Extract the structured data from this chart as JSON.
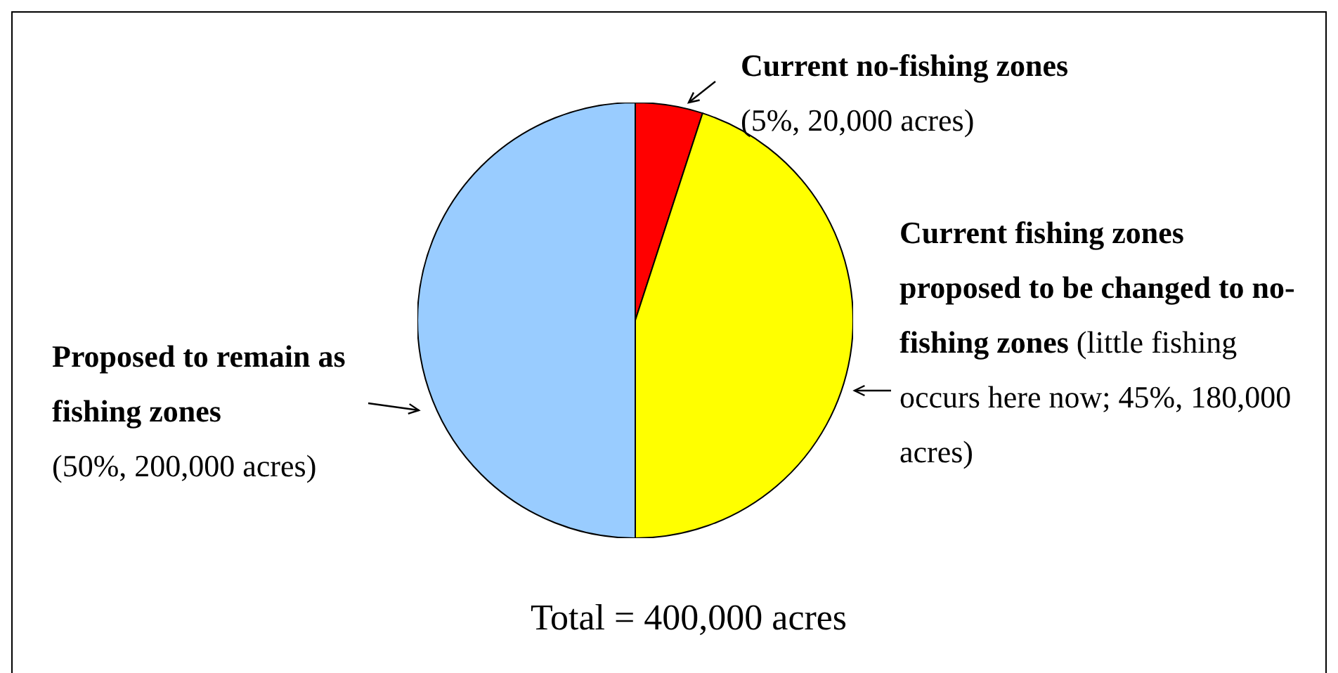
{
  "chart_data": {
    "type": "pie",
    "categories": [
      "Current no-fishing zones",
      "Current fishing zones proposed to be changed to no-fishing zones",
      "Proposed to remain as fishing zones"
    ],
    "values": [
      20000,
      180000,
      200000
    ],
    "value_labels": [
      "(5%, 20,000 acres)",
      "(little fishing occurs here now; 45%, 180,000 acres)",
      "(50%, 200,000 acres)"
    ],
    "colors": [
      "#ff0000",
      "#ffff00",
      "#99ccff"
    ],
    "annotations": [
      "Total = 400,000 acres"
    ]
  }
}
